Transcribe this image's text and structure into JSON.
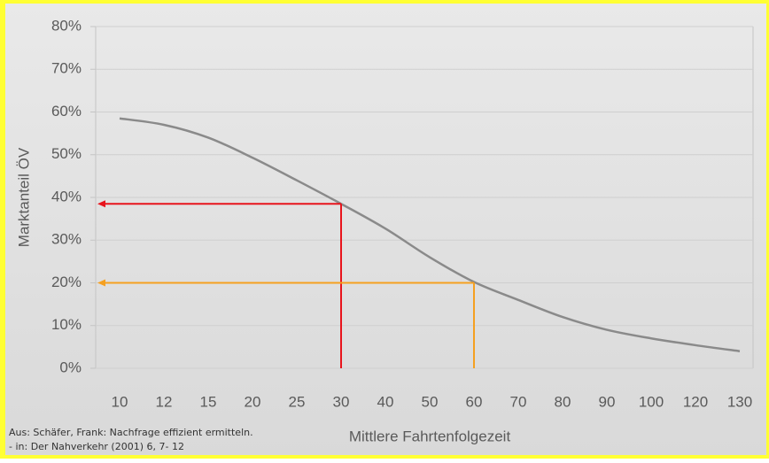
{
  "chart_data": {
    "type": "line",
    "ylabel": "Marktanteil ÖV",
    "xlabel": "Mittlere Fahrtenfolgezeit",
    "source": [
      "Aus: Schäfer, Frank: Nachfrage effizient ermitteln.",
      "- in: Der Nahverkehr (2001) 6, 7- 12"
    ],
    "categories": [
      10,
      12,
      15,
      20,
      25,
      30,
      40,
      50,
      60,
      70,
      80,
      90,
      100,
      120,
      130
    ],
    "series": [
      {
        "color": "#8a8a8a",
        "values": [
          58.5,
          57,
          54,
          49.3,
          44,
          38.5,
          32.7,
          26,
          20.2,
          16,
          12,
          9,
          7,
          5.4,
          4
        ]
      }
    ],
    "guides": [
      {
        "category": 30,
        "value": 38.5,
        "color": "#e8141c"
      },
      {
        "category": 60,
        "value": 20,
        "color": "#f5a020"
      }
    ],
    "ylim": [
      0,
      80
    ],
    "yticks": [
      {
        "value": 0,
        "label": "0%"
      },
      {
        "value": 10,
        "label": "10%"
      },
      {
        "value": 20,
        "label": "20%"
      },
      {
        "value": 30,
        "label": "30%"
      },
      {
        "value": 40,
        "label": "40%"
      },
      {
        "value": 50,
        "label": "50%"
      },
      {
        "value": 60,
        "label": "60%"
      },
      {
        "value": 70,
        "label": "70%"
      },
      {
        "value": 80,
        "label": "80%"
      }
    ],
    "grid": true
  }
}
